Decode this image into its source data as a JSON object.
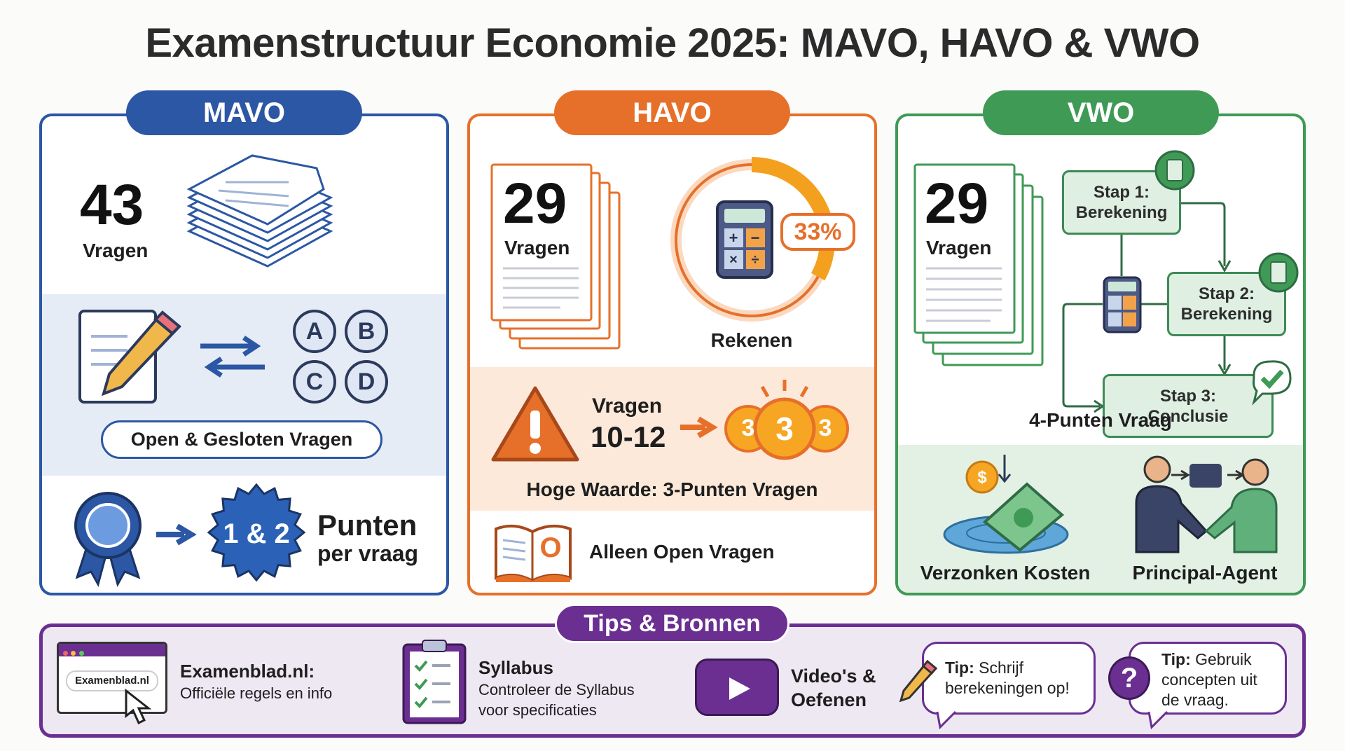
{
  "title": "Examenstructuur Economie 2025: MAVO, HAVO & VWO",
  "colors": {
    "mavo": "#2b57a4",
    "havo": "#e6702a",
    "vwo": "#3f9a55",
    "tips": "#6a2f91"
  },
  "mavo": {
    "header": "MAVO",
    "count": "43",
    "count_label": "Vragen",
    "options": [
      "A",
      "B",
      "C",
      "D"
    ],
    "type_label": "Open & Gesloten Vragen",
    "points_badge": "1 & 2",
    "points_title": "Punten",
    "points_sub": "per vraag",
    "icons": [
      "paper-stack-icon",
      "document-pencil-icon",
      "swap-arrows-icon",
      "ribbon-award-icon",
      "starburst-badge-icon"
    ]
  },
  "havo": {
    "header": "HAVO",
    "count": "29",
    "count_label": "Vragen",
    "calc_percent": "33%",
    "calc_fraction": 0.33,
    "calc_label": "Rekenen",
    "range_label": "Vragen",
    "range_value": "10-12",
    "coin_value": "3",
    "high_value_label": "Hoge Waarde: 3-Punten Vragen",
    "open_label": "Alleen Open Vragen",
    "book_letter": "O",
    "icons": [
      "document-stack-icon",
      "donut-calculator-icon",
      "warning-icon",
      "coins-icon",
      "open-book-icon"
    ]
  },
  "vwo": {
    "header": "VWO",
    "count": "29",
    "count_label": "Vragen",
    "steps": [
      {
        "title": "Stap 1:",
        "text": "Berekening"
      },
      {
        "title": "Stap 2:",
        "text": "Berekening"
      },
      {
        "title": "Stap 3:",
        "text": "Conclusie"
      }
    ],
    "flow_label": "4-Punten Vraag",
    "concepts": [
      "Verzonken Kosten",
      "Principal-Agent"
    ],
    "icons": [
      "document-stack-icon",
      "calculator-icon",
      "check-bubble-icon",
      "sunk-cost-icon",
      "handshake-icon"
    ]
  },
  "tips": {
    "header": "Tips & Bronnen",
    "browser_text": "Examenblad.nl",
    "site_title": "Examenblad.nl:",
    "site_sub": "Officiële regels en info",
    "syllabus_title": "Syllabus",
    "syllabus_line1": "Controleer de Syllabus",
    "syllabus_line2": "voor specificaties",
    "video_line1": "Video's &",
    "video_line2": "Oefenen",
    "tip1_bold": "Tip:",
    "tip1_rest": " Schrijf",
    "tip1_line2": "berekeningen op!",
    "tip2_bold": "Tip:",
    "tip2_rest": " Gebruik",
    "tip2_line2": "concepten uit",
    "tip2_line3": "de vraag."
  }
}
